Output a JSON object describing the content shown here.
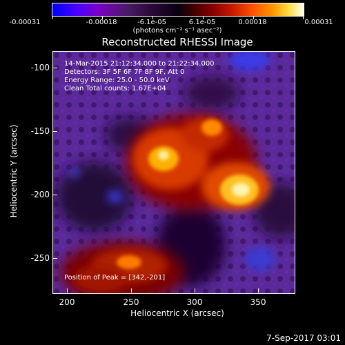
{
  "colorbar": {
    "tick_labels": [
      "-0.00031",
      "-0.00018",
      "-6.1e-05",
      "6.1e-05",
      "0.00018",
      "0.00031"
    ],
    "unit": "(photons cm⁻² s⁻¹ asec⁻²)"
  },
  "title": "Reconstructed RHESSI Image",
  "info": {
    "time_range": "14-Mar-2015 21:12:34.000 to 21:22:34.000",
    "detectors": "Detectors: 3F 5F 6F 7F 8F 9F, Att 0",
    "energy": "Energy Range: 25.0 - 50.0 keV",
    "clean": "Clean    Total counts: 1.67E+04"
  },
  "peak": "Position of Peak = [342,-201]",
  "axes": {
    "xlabel": "Heliocentric X (arcsec)",
    "ylabel": "Heliocentric Y (arcsec)",
    "x_ticks": [
      "200",
      "250",
      "300",
      "350"
    ],
    "y_ticks": [
      "-100",
      "-150",
      "-200",
      "-250"
    ]
  },
  "footer_timestamp": "7-Sep-2017 03:01",
  "image": {
    "xlim": [
      190,
      380
    ],
    "ylim": [
      -280,
      -90
    ],
    "peak_xy": [
      342,
      -201
    ]
  },
  "colors": {
    "background": "#000000",
    "foreground": "#ffffff"
  }
}
